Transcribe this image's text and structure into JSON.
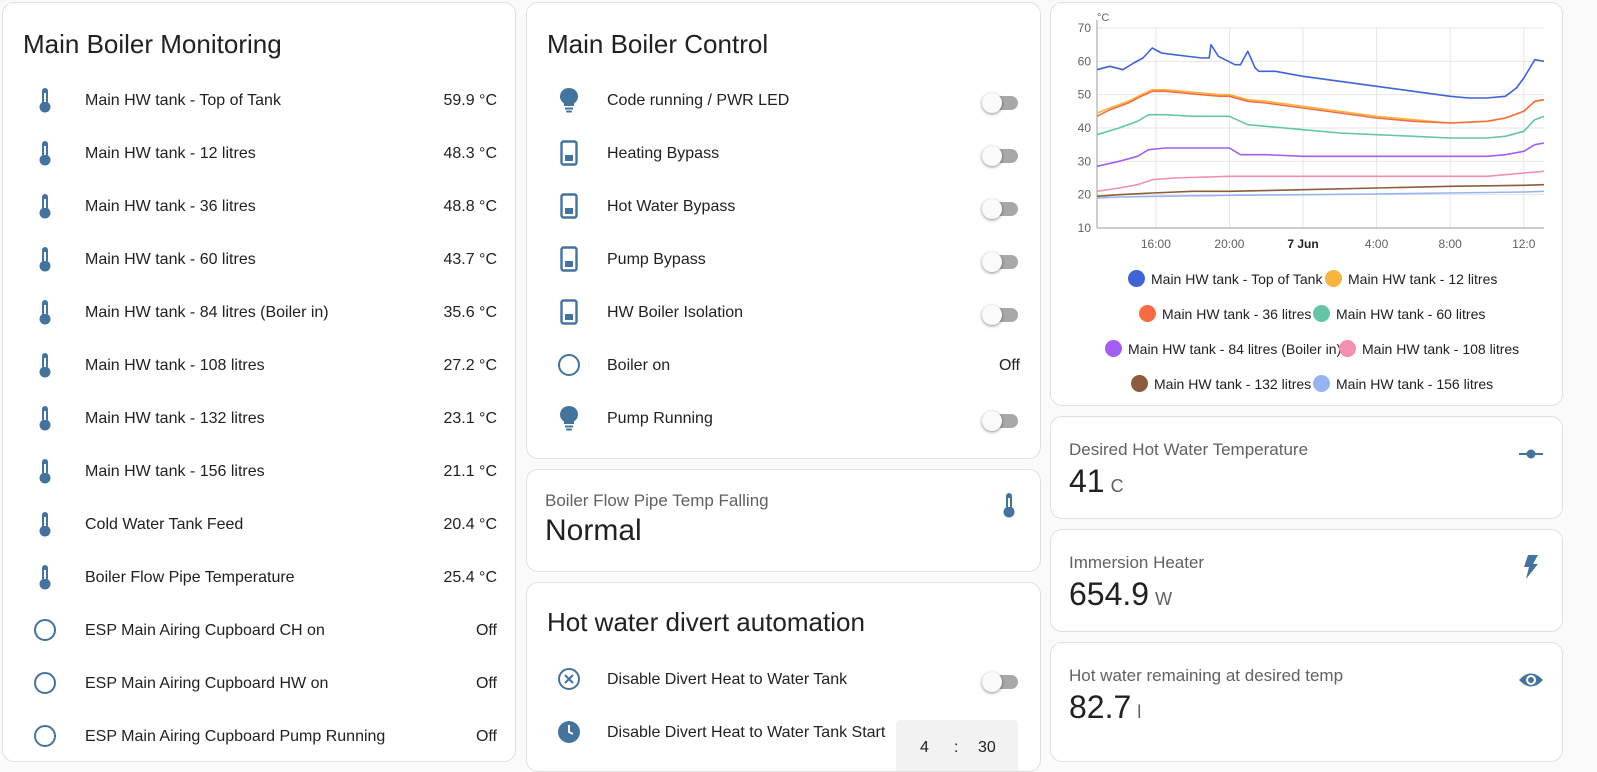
{
  "monitoring": {
    "title": "Main Boiler Monitoring",
    "rows": [
      {
        "name": "Main HW tank - Top of Tank",
        "value": "59.9 °C",
        "icon": "thermometer-icon"
      },
      {
        "name": "Main HW tank - 12 litres",
        "value": "48.3 °C",
        "icon": "thermometer-icon"
      },
      {
        "name": "Main HW tank - 36 litres",
        "value": "48.8 °C",
        "icon": "thermometer-icon"
      },
      {
        "name": "Main HW tank - 60 litres",
        "value": "43.7 °C",
        "icon": "thermometer-icon"
      },
      {
        "name": "Main HW tank - 84 litres (Boiler in)",
        "value": "35.6 °C",
        "icon": "thermometer-icon"
      },
      {
        "name": "Main HW tank - 108 litres",
        "value": "27.2 °C",
        "icon": "thermometer-icon"
      },
      {
        "name": "Main HW tank - 132 litres",
        "value": "23.1 °C",
        "icon": "thermometer-icon"
      },
      {
        "name": "Main HW tank - 156 litres",
        "value": "21.1 °C",
        "icon": "thermometer-icon"
      },
      {
        "name": "Cold Water Tank Feed",
        "value": "20.4 °C",
        "icon": "thermometer-icon"
      },
      {
        "name": "Boiler Flow Pipe Temperature",
        "value": "25.4 °C",
        "icon": "thermometer-icon"
      },
      {
        "name": "ESP Main Airing Cupboard CH on",
        "value": "Off",
        "icon": "circle-outline-icon"
      },
      {
        "name": "ESP Main Airing Cupboard HW on",
        "value": "Off",
        "icon": "circle-outline-icon"
      },
      {
        "name": "ESP Main Airing Cupboard Pump Running",
        "value": "Off",
        "icon": "circle-outline-icon"
      }
    ]
  },
  "control": {
    "title": "Main Boiler Control",
    "rows": [
      {
        "name": "Code running / PWR LED",
        "icon": "lightbulb-icon",
        "type": "toggle",
        "state": "off"
      },
      {
        "name": "Heating Bypass",
        "icon": "relay-switch-icon",
        "type": "toggle",
        "state": "off"
      },
      {
        "name": "Hot Water Bypass",
        "icon": "relay-switch-icon",
        "type": "toggle",
        "state": "off"
      },
      {
        "name": "Pump Bypass",
        "icon": "relay-switch-icon",
        "type": "toggle",
        "state": "off"
      },
      {
        "name": "HW Boiler Isolation",
        "icon": "relay-switch-icon",
        "type": "toggle",
        "state": "off"
      },
      {
        "name": "Boiler on",
        "icon": "circle-outline-icon",
        "type": "text",
        "value": "Off"
      },
      {
        "name": "Pump Running",
        "icon": "lightbulb-icon",
        "type": "toggle",
        "state": "off"
      }
    ]
  },
  "flow_pipe": {
    "label": "Boiler Flow Pipe Temp Falling",
    "value": "Normal",
    "icon": "thermometer-icon"
  },
  "divert": {
    "title": "Hot water divert automation",
    "rows": [
      {
        "name": "Disable Divert Heat to Water Tank",
        "icon": "close-circle-icon",
        "type": "toggle",
        "state": "off"
      },
      {
        "name": "Disable Divert Heat to Water Tank Start",
        "icon": "clock-icon",
        "type": "time",
        "hour": "4",
        "minute": "30",
        "sep": ":"
      }
    ]
  },
  "desired_temp": {
    "label": "Desired Hot Water Temperature",
    "value": "41",
    "unit": "C",
    "icon": "slider-icon"
  },
  "immersion": {
    "label": "Immersion Heater",
    "value": "654.9",
    "unit": "W",
    "icon": "flash-icon"
  },
  "remaining": {
    "label": "Hot water remaining at desired temp",
    "value": "82.7",
    "unit": "l",
    "icon": "eye-icon"
  },
  "colors": {
    "accent": "#44739e",
    "toggle_off": "#9e9e9e"
  },
  "chart_data": {
    "type": "line",
    "ylabel": "°C",
    "ylim": [
      10,
      70
    ],
    "yticks": [
      "10",
      "20",
      "30",
      "40",
      "50",
      "60",
      "70"
    ],
    "xticks": [
      "16:00",
      "20:00",
      "7 Jun",
      "4:00",
      "8:00",
      "12:0"
    ],
    "xtick_hours": [
      16,
      20,
      24,
      28,
      32,
      36
    ],
    "xlim": [
      12.8,
      37.1
    ],
    "grid": true,
    "legend": "bottom",
    "series": [
      {
        "name": "Main HW tank - Top of Tank",
        "color": "#4063d6",
        "x": [
          12.8,
          13.5,
          14.2,
          14.8,
          15.3,
          15.8,
          16.3,
          17,
          18.5,
          18.9,
          19,
          19.4,
          20.3,
          20.6,
          21,
          21.4,
          21.6,
          22.5,
          24,
          26,
          28,
          30,
          32,
          33,
          34,
          35,
          35.6,
          36,
          36.6,
          37.1
        ],
        "y": [
          57.5,
          58.5,
          57.5,
          59.5,
          61,
          64,
          62.5,
          62,
          61,
          61,
          65,
          61.5,
          59,
          59,
          63,
          58,
          57,
          57,
          55.5,
          54,
          52.5,
          51,
          49.5,
          49,
          49,
          49.5,
          52,
          55,
          60.5,
          60
        ]
      },
      {
        "name": "Main HW tank - 12 litres",
        "color": "#f5b53f",
        "x": [
          12.8,
          13.5,
          14.5,
          15.2,
          15.8,
          16.5,
          17.5,
          18.5,
          19.5,
          20,
          21,
          22,
          24,
          26,
          28,
          30,
          32,
          34,
          35,
          36,
          36.6,
          37.1
        ],
        "y": [
          44.5,
          46,
          48,
          50,
          51.5,
          51.5,
          51,
          50.5,
          50,
          50,
          48.5,
          48,
          46.5,
          45,
          43.5,
          42.5,
          41.5,
          42,
          43,
          45,
          48,
          48.5
        ]
      },
      {
        "name": "Main HW tank - 36 litres",
        "color": "#f76c44",
        "x": [
          12.8,
          13.5,
          14.5,
          15.2,
          15.8,
          16.5,
          17.5,
          18.5,
          19.5,
          20,
          21,
          22,
          24,
          26,
          28,
          30,
          32,
          34,
          35,
          36,
          36.6,
          37.1
        ],
        "y": [
          43.5,
          45.5,
          47.5,
          49.5,
          51,
          51,
          50.5,
          50,
          49.5,
          49.5,
          48,
          47.5,
          46,
          44.5,
          43,
          42,
          41.5,
          42,
          43,
          45,
          48,
          48.5
        ]
      },
      {
        "name": "Main HW tank - 60 litres",
        "color": "#65c5a6",
        "x": [
          12.8,
          14,
          15,
          15.6,
          16.5,
          18,
          19.5,
          20,
          21,
          22,
          24,
          26,
          28,
          30,
          32,
          34,
          35,
          36,
          36.6,
          37.1
        ],
        "y": [
          38,
          40,
          42,
          44,
          44,
          43.5,
          43.5,
          43.5,
          41,
          40.5,
          39.5,
          38.5,
          38,
          37.5,
          37,
          37,
          37.5,
          39,
          42.5,
          43.5
        ]
      },
      {
        "name": "Main HW tank - 84 litres (Boiler in)",
        "color": "#a45ff0",
        "x": [
          12.8,
          14,
          15,
          15.6,
          16.5,
          18,
          19.5,
          20,
          20.6,
          22,
          24,
          26,
          28,
          30,
          32,
          34,
          35,
          36,
          36.6,
          37.1
        ],
        "y": [
          28.5,
          30,
          31.5,
          33.5,
          34,
          34,
          34,
          34,
          32,
          32,
          31.5,
          31.5,
          31.5,
          31.5,
          31.5,
          31.5,
          32,
          33,
          35,
          35.5
        ]
      },
      {
        "name": "Main HW tank - 108 litres",
        "color": "#f48fb1",
        "x": [
          12.8,
          14,
          15,
          15.8,
          17,
          20,
          24,
          28,
          32,
          34,
          35,
          36,
          37.1
        ],
        "y": [
          21,
          22,
          23,
          24.5,
          25,
          25.5,
          25.5,
          25.5,
          25.5,
          25.5,
          26,
          26.5,
          27
        ]
      },
      {
        "name": "Main HW tank - 132 litres",
        "color": "#8d5c3c",
        "x": [
          12.8,
          14,
          15.8,
          18,
          20,
          24,
          28,
          32,
          36,
          37.1
        ],
        "y": [
          19.5,
          20,
          20.5,
          21,
          21,
          21.5,
          22,
          22.5,
          22.8,
          23
        ]
      },
      {
        "name": "Main HW tank - 156 litres",
        "color": "#97b4f2",
        "x": [
          12.8,
          14,
          16,
          20,
          24,
          28,
          32,
          36,
          37.1
        ],
        "y": [
          19,
          19.3,
          19.5,
          19.8,
          20,
          20.2,
          20.5,
          20.8,
          21
        ]
      }
    ]
  }
}
